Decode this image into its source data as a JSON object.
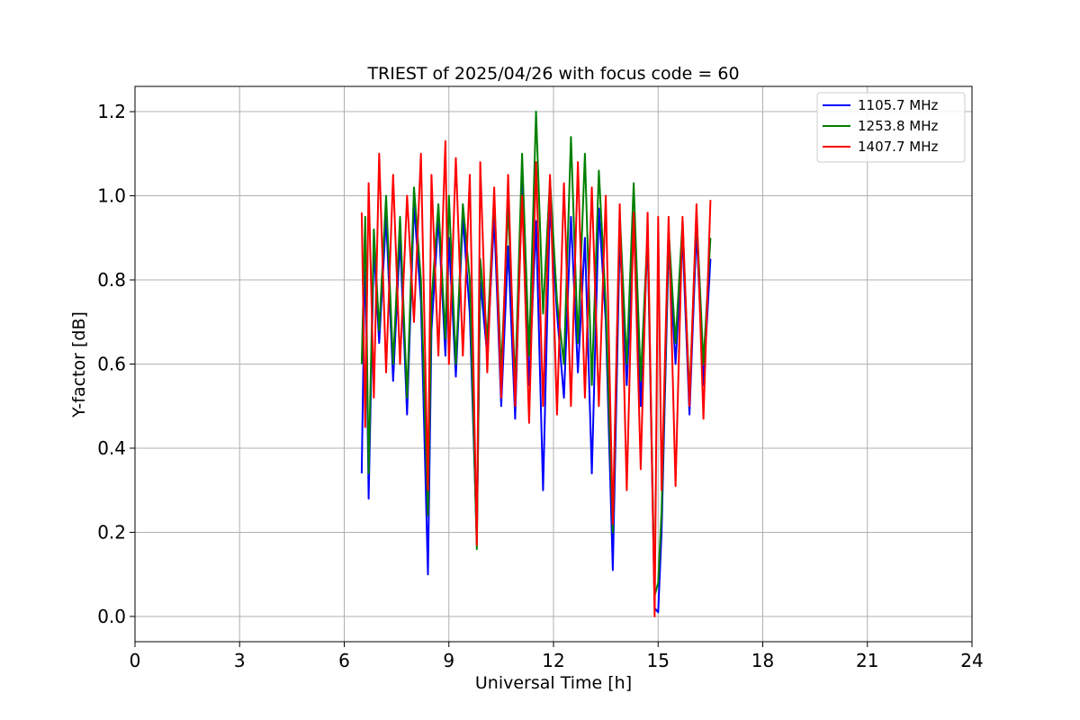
{
  "chart_data": {
    "type": "line",
    "title": "TRIEST of 2025/04/26 with focus code = 60",
    "xlabel": "Universal Time [h]",
    "ylabel": "Y-factor [dB]",
    "xlim": [
      0,
      24
    ],
    "ylim": [
      -0.06,
      1.26
    ],
    "xticks": [
      0,
      3,
      6,
      9,
      12,
      15,
      18,
      21,
      24
    ],
    "yticks": [
      0.0,
      0.2,
      0.4,
      0.6,
      0.8,
      1.0,
      1.2
    ],
    "ytick_labels": [
      "0.0",
      "0.2",
      "0.4",
      "0.6",
      "0.8",
      "1.0",
      "1.2"
    ],
    "grid": true,
    "legend_position": "top-right",
    "x": [
      6.5,
      6.6,
      6.7,
      6.85,
      7.0,
      7.2,
      7.4,
      7.6,
      7.8,
      8.0,
      8.2,
      8.4,
      8.5,
      8.7,
      8.9,
      9.0,
      9.2,
      9.4,
      9.6,
      9.8,
      9.9,
      10.1,
      10.3,
      10.5,
      10.7,
      10.9,
      11.1,
      11.3,
      11.5,
      11.7,
      11.9,
      12.1,
      12.3,
      12.5,
      12.7,
      12.9,
      13.1,
      13.3,
      13.5,
      13.7,
      13.9,
      14.1,
      14.3,
      14.5,
      14.7,
      14.9,
      15.0,
      15.1,
      15.3,
      15.5,
      15.7,
      15.9,
      16.1,
      16.3,
      16.5
    ],
    "series": [
      {
        "name": "1105.7 MHz",
        "color": "#0000ff",
        "values": [
          0.34,
          0.9,
          0.28,
          0.88,
          0.65,
          0.95,
          0.56,
          0.9,
          0.48,
          0.98,
          0.75,
          0.1,
          0.68,
          0.95,
          0.62,
          0.9,
          0.57,
          0.95,
          0.72,
          0.18,
          0.8,
          0.62,
          0.95,
          0.5,
          0.88,
          0.47,
          1.03,
          0.55,
          0.94,
          0.3,
          0.98,
          0.72,
          0.52,
          0.95,
          0.58,
          0.9,
          0.34,
          0.97,
          0.7,
          0.11,
          0.9,
          0.55,
          0.93,
          0.5,
          0.9,
          0.02,
          0.01,
          0.2,
          0.88,
          0.6,
          0.9,
          0.48,
          0.92,
          0.55,
          0.85
        ]
      },
      {
        "name": "1253.8 MHz",
        "color": "#008000",
        "values": [
          0.6,
          0.95,
          0.34,
          0.92,
          0.68,
          1.0,
          0.6,
          0.95,
          0.52,
          1.02,
          0.8,
          0.24,
          0.75,
          0.98,
          0.66,
          1.0,
          0.6,
          0.98,
          0.8,
          0.16,
          0.85,
          0.66,
          1.0,
          0.58,
          0.98,
          0.55,
          1.1,
          0.62,
          1.2,
          0.72,
          1.04,
          0.75,
          0.6,
          1.14,
          0.65,
          1.1,
          0.55,
          1.06,
          0.74,
          0.2,
          0.96,
          0.6,
          1.03,
          0.56,
          0.92,
          0.05,
          0.08,
          0.25,
          0.92,
          0.65,
          0.94,
          0.52,
          0.96,
          0.6,
          0.9
        ]
      },
      {
        "name": "1407.7 MHz",
        "color": "#ff0000",
        "values": [
          0.96,
          0.45,
          1.03,
          0.52,
          1.1,
          0.58,
          1.05,
          0.6,
          1.0,
          0.7,
          1.1,
          0.3,
          1.05,
          0.62,
          1.13,
          0.6,
          1.09,
          0.62,
          1.05,
          0.17,
          1.08,
          0.58,
          1.02,
          0.52,
          1.05,
          0.5,
          1.0,
          0.46,
          1.08,
          0.5,
          1.05,
          0.48,
          1.03,
          0.5,
          1.08,
          0.52,
          1.02,
          0.5,
          1.0,
          0.22,
          0.98,
          0.3,
          0.96,
          0.35,
          0.96,
          0.0,
          0.95,
          0.3,
          0.95,
          0.31,
          0.95,
          0.5,
          0.98,
          0.47,
          0.99
        ]
      }
    ]
  }
}
